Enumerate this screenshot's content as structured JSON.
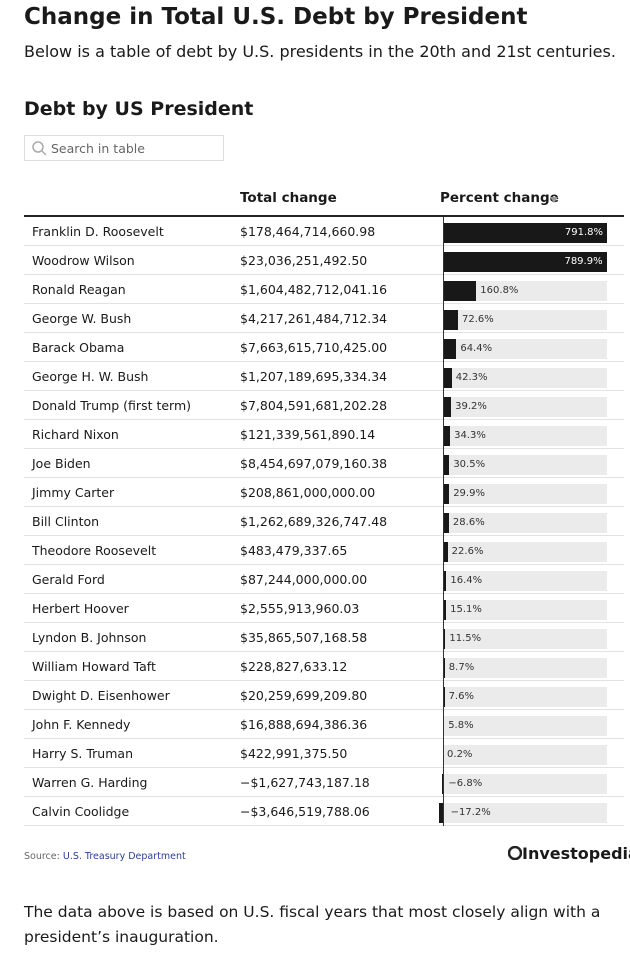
{
  "header": {
    "title": "Change in Total U.S. Debt by President",
    "subtitle": "Below is a table of debt by U.S. presidents in the 20th and 21st centuries."
  },
  "table": {
    "title": "Debt by US President",
    "search_placeholder": "Search in table",
    "columns": [
      "Total change",
      "Percent change"
    ],
    "names": [
      "Franklin D. Roosevelt",
      "Woodrow Wilson",
      "Ronald Reagan",
      "George W. Bush",
      "Barack Obama",
      "George H. W. Bush",
      "Donald Trump (first term)",
      "Richard Nixon",
      "Joe Biden",
      "Jimmy Carter",
      "Bill Clinton",
      "Theodore Roosevelt",
      "Gerald Ford",
      "Herbert Hoover",
      "Lyndon B. Johnson",
      "William Howard Taft",
      "Dwight D. Eisenhower",
      "John F. Kennedy",
      "Harry S. Truman",
      "Warren G. Harding",
      "Calvin Coolidge"
    ],
    "total_change": [
      "$178,464,714,660.98",
      "$23,036,251,492.50",
      "$1,604,482,712,041.16",
      "$4,217,261,484,712.34",
      "$7,663,615,710,425.00",
      "$1,207,189,695,334.34",
      "$7,804,591,681,202.28",
      "$121,339,561,890.14",
      "$8,454,697,079,160.38",
      "$208,861,000,000.00",
      "$1,262,689,326,747.48",
      "$483,479,337.65",
      "$87,244,000,000.00",
      "$2,555,913,960.03",
      "$35,865,507,168.58",
      "$228,827,633.12",
      "$20,259,699,209.80",
      "$16,888,694,386.36",
      "$422,991,375.50",
      "−$1,627,743,187.18",
      "−$3,646,519,788.06"
    ],
    "percent_change": [
      791.8,
      789.9,
      160.8,
      72.6,
      64.4,
      42.3,
      39.2,
      34.3,
      30.5,
      29.9,
      28.6,
      22.6,
      16.4,
      15.1,
      11.5,
      8.7,
      7.6,
      5.8,
      0.2,
      -6.8,
      -17.2
    ],
    "percent_labels": [
      "791.8%",
      "789.9%",
      "160.8%",
      "72.6%",
      "64.4%",
      "42.3%",
      "39.2%",
      "34.3%",
      "30.5%",
      "29.9%",
      "28.6%",
      "22.6%",
      "16.4%",
      "15.1%",
      "11.5%",
      "8.7%",
      "7.6%",
      "5.8%",
      "0.2%",
      "−6.8%",
      "−17.2%"
    ],
    "source_prefix": "Source:",
    "source": "U.S. Treasury Department",
    "logo": "Investopedia"
  },
  "footer": "The data above is based on U.S. fiscal years that most closely align with a president’s inauguration."
}
